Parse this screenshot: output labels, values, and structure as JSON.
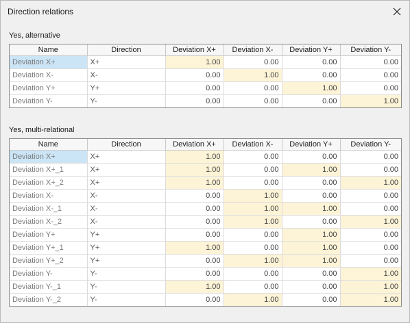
{
  "window": {
    "title": "Direction relations"
  },
  "columns": [
    "Name",
    "Direction",
    "Deviation X+",
    "Deviation X-",
    "Deviation Y+",
    "Deviation Y-"
  ],
  "sections": [
    {
      "label": "Yes, alternative",
      "rows": [
        {
          "name": "Deviation X+",
          "direction": "X+",
          "values": [
            "1.00",
            "0.00",
            "0.00",
            "0.00"
          ],
          "highlight": [
            0
          ]
        },
        {
          "name": "Deviation X-",
          "direction": "X-",
          "values": [
            "0.00",
            "1.00",
            "0.00",
            "0.00"
          ],
          "highlight": [
            1
          ]
        },
        {
          "name": "Deviation Y+",
          "direction": "Y+",
          "values": [
            "0.00",
            "0.00",
            "1.00",
            "0.00"
          ],
          "highlight": [
            2
          ]
        },
        {
          "name": "Deviation Y-",
          "direction": "Y-",
          "values": [
            "0.00",
            "0.00",
            "0.00",
            "1.00"
          ],
          "highlight": [
            3
          ]
        }
      ]
    },
    {
      "label": "Yes, multi-relational",
      "rows": [
        {
          "name": "Deviation X+",
          "direction": "X+",
          "values": [
            "1.00",
            "0.00",
            "0.00",
            "0.00"
          ],
          "highlight": [
            0
          ]
        },
        {
          "name": "Deviation X+_1",
          "direction": "X+",
          "values": [
            "1.00",
            "0.00",
            "1.00",
            "0.00"
          ],
          "highlight": [
            0,
            2
          ]
        },
        {
          "name": "Deviation X+_2",
          "direction": "X+",
          "values": [
            "1.00",
            "0.00",
            "0.00",
            "1.00"
          ],
          "highlight": [
            0,
            3
          ]
        },
        {
          "name": "Deviation X-",
          "direction": "X-",
          "values": [
            "0.00",
            "1.00",
            "0.00",
            "0.00"
          ],
          "highlight": [
            1
          ]
        },
        {
          "name": "Deviation X-_1",
          "direction": "X-",
          "values": [
            "0.00",
            "1.00",
            "1.00",
            "0.00"
          ],
          "highlight": [
            1,
            2
          ]
        },
        {
          "name": "Deviation X-_2",
          "direction": "X-",
          "values": [
            "0.00",
            "1.00",
            "0.00",
            "1.00"
          ],
          "highlight": [
            1,
            3
          ]
        },
        {
          "name": "Deviation Y+",
          "direction": "Y+",
          "values": [
            "0.00",
            "0.00",
            "1.00",
            "0.00"
          ],
          "highlight": [
            2
          ]
        },
        {
          "name": "Deviation Y+_1",
          "direction": "Y+",
          "values": [
            "1.00",
            "0.00",
            "1.00",
            "0.00"
          ],
          "highlight": [
            0,
            2
          ]
        },
        {
          "name": "Deviation Y+_2",
          "direction": "Y+",
          "values": [
            "0.00",
            "1.00",
            "1.00",
            "0.00"
          ],
          "highlight": [
            1,
            2
          ]
        },
        {
          "name": "Deviation Y-",
          "direction": "Y-",
          "values": [
            "0.00",
            "0.00",
            "0.00",
            "1.00"
          ],
          "highlight": [
            3
          ]
        },
        {
          "name": "Deviation Y-_1",
          "direction": "Y-",
          "values": [
            "1.00",
            "0.00",
            "0.00",
            "1.00"
          ],
          "highlight": [
            0,
            3
          ]
        },
        {
          "name": "Deviation Y-_2",
          "direction": "Y-",
          "values": [
            "0.00",
            "1.00",
            "0.00",
            "1.00"
          ],
          "highlight": [
            1,
            3
          ]
        }
      ]
    }
  ],
  "colors": {
    "highlight": "#fdf3d6",
    "selected": "#cbe5f7"
  },
  "icons": {
    "close": "close-icon"
  }
}
